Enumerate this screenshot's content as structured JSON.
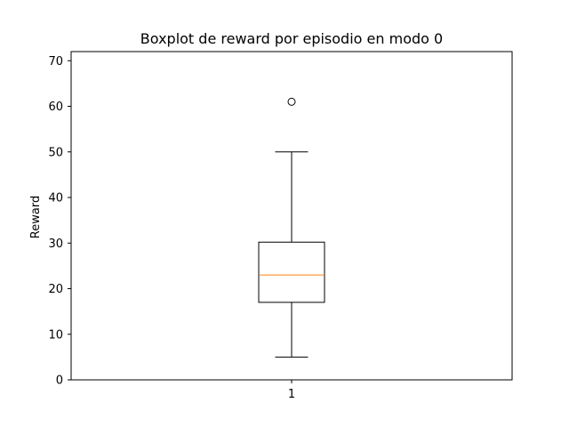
{
  "chart_data": {
    "type": "boxplot",
    "title": "Boxplot de reward por episodio en modo 0",
    "xlabel": "",
    "ylabel": "Reward",
    "categories": [
      "1"
    ],
    "ylim": [
      0,
      72
    ],
    "yticks": [
      0,
      10,
      20,
      30,
      40,
      50,
      60,
      70
    ],
    "grid": false,
    "boxes": [
      {
        "category": "1",
        "whisker_low": 5,
        "q1": 17,
        "median": 23,
        "q3": 30.2,
        "whisker_high": 50,
        "outliers": [
          61
        ]
      }
    ],
    "colors": {
      "box": "#000000",
      "median": "#ff7f0e",
      "outlier": "#000000"
    }
  }
}
